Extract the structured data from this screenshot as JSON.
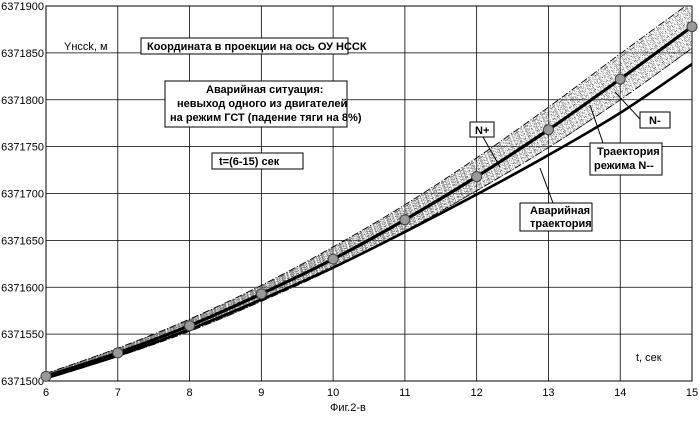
{
  "chart_data": {
    "type": "line",
    "ylabel": "Yнcck, м",
    "xlabel": "t, сек",
    "caption": "Фиг.2-в",
    "xlim": [
      6,
      15
    ],
    "ylim": [
      6371500,
      6371900
    ],
    "x_ticks": [
      "6",
      "7",
      "8",
      "9",
      "10",
      "11",
      "12",
      "13",
      "14",
      "15"
    ],
    "y_ticks": [
      "6371500",
      "6371550",
      "6371600",
      "6371650",
      "6371700",
      "6371750",
      "6371800",
      "6371850",
      "6371900"
    ],
    "grid": true,
    "annotations": {
      "title": "Координата в проекции на ось ОУ НССК",
      "emergency_line1": "Аварийная ситуация:",
      "emergency_line2": "невыход одного из двигателей",
      "emergency_line3": "на режим ГСТ (падение тяги на 8%)",
      "time_range": "t=(6-15)  сек",
      "n_plus": "N+",
      "n_minus": "N-",
      "nominal_line1": "Траектория",
      "nominal_line2": "режима N--",
      "emergency_traj_line1": "Аварийная",
      "emergency_traj_line2": "траектория"
    },
    "series": [
      {
        "role": "nominal",
        "x": [
          6,
          7,
          8,
          9,
          10,
          11,
          12,
          13,
          14,
          15
        ],
        "values": [
          6371505,
          6371530,
          6371559,
          6371593,
          6371630,
          6371672,
          6371718,
          6371768,
          6371822,
          6371878
        ]
      },
      {
        "role": "emergency",
        "x": [
          6,
          7,
          8,
          9,
          10,
          11,
          12,
          13,
          14,
          15
        ],
        "values": [
          6371503,
          6371527,
          6371555,
          6371587,
          6371621,
          6371659,
          6371699,
          6371741,
          6371786,
          6371838
        ]
      },
      {
        "role": "N+",
        "x": [
          6,
          7,
          8,
          9,
          10,
          11,
          12,
          13,
          14,
          15
        ],
        "values": [
          6371508,
          6371535,
          6371566,
          6371602,
          6371643,
          6371688,
          6371738,
          6371792,
          6371849,
          6371905
        ]
      },
      {
        "role": "N-",
        "x": [
          6,
          7,
          8,
          9,
          10,
          11,
          12,
          13,
          14,
          15
        ],
        "values": [
          6371502,
          6371526,
          6371553,
          6371585,
          6371620,
          6371660,
          6371703,
          6371749,
          6371800,
          6371855
        ]
      }
    ],
    "markers_on": "nominal",
    "colors": {
      "line": "#000000",
      "grid": "#000000",
      "marker": "#9a9a9a"
    }
  }
}
